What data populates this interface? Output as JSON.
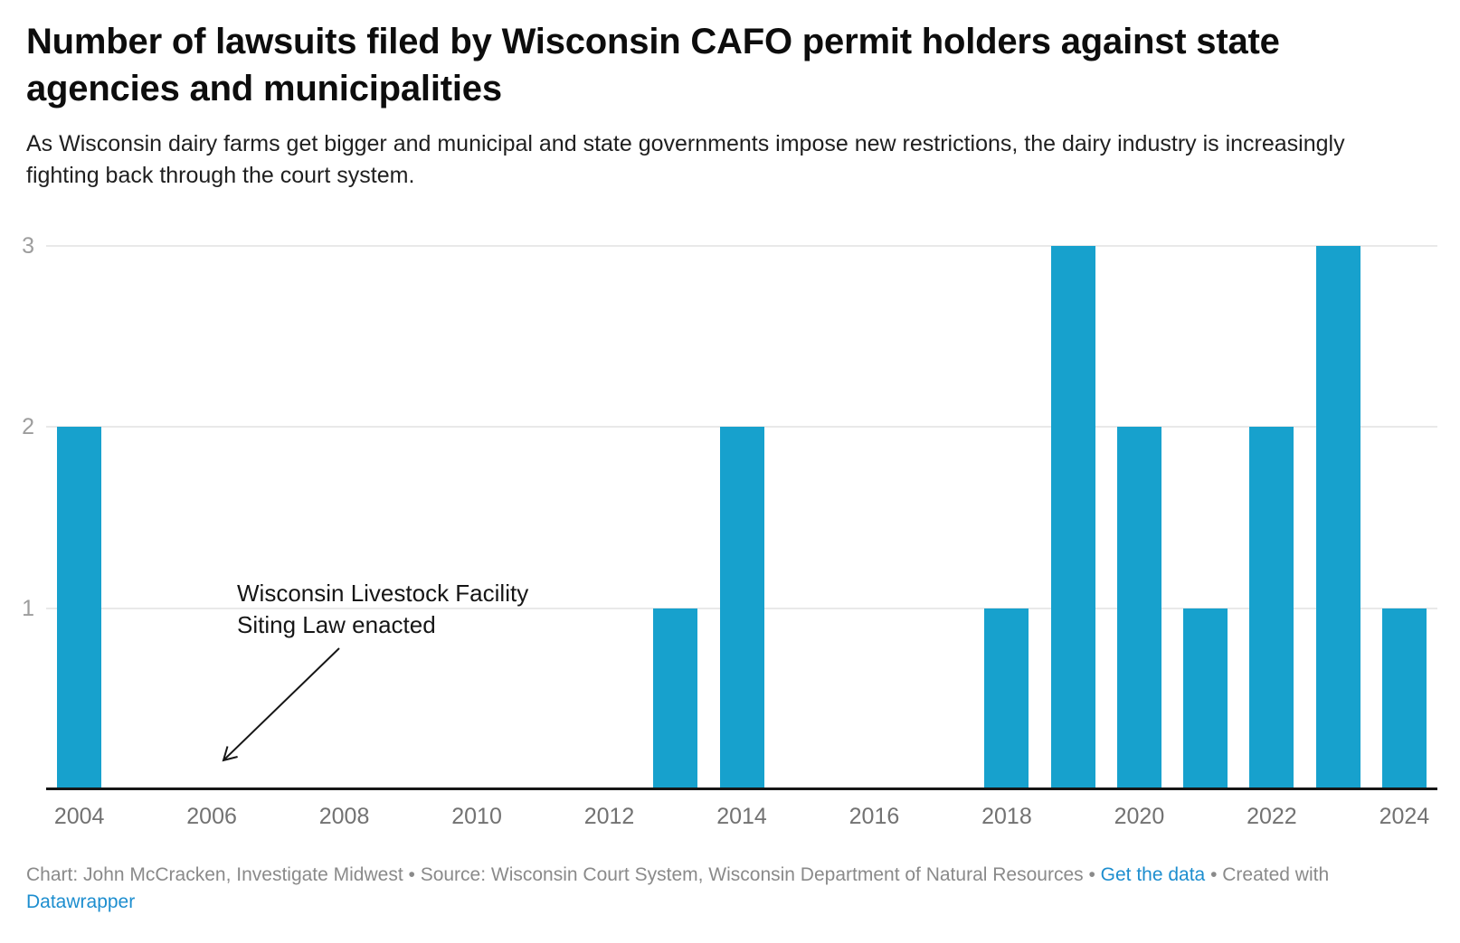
{
  "header": {
    "title": "Number of lawsuits filed by Wisconsin CAFO permit holders against state agencies and municipalities",
    "subtitle": "As Wisconsin dairy farms get bigger and municipal and state governments impose new restrictions, the dairy industry is increasingly fighting back through the court system."
  },
  "chart_data": {
    "type": "bar",
    "title": "Number of lawsuits filed by Wisconsin CAFO permit holders against state agencies and municipalities",
    "categories": [
      2004,
      2005,
      2006,
      2007,
      2008,
      2009,
      2010,
      2011,
      2012,
      2013,
      2014,
      2015,
      2016,
      2017,
      2018,
      2019,
      2020,
      2021,
      2022,
      2023,
      2024
    ],
    "values": [
      2,
      0,
      0,
      0,
      0,
      0,
      0,
      0,
      0,
      1,
      2,
      0,
      0,
      0,
      1,
      3,
      2,
      1,
      2,
      3,
      1
    ],
    "xlabel": "",
    "ylabel": "",
    "ylim": [
      0,
      3
    ],
    "y_ticks": [
      1,
      2,
      3
    ],
    "x_tick_labels": [
      "2004",
      "2006",
      "2008",
      "2010",
      "2012",
      "2014",
      "2016",
      "2018",
      "2020",
      "2022",
      "2024"
    ],
    "grid": true,
    "legend": "none",
    "bar_color": "#17a1cd",
    "gridline_color": "#e9e9e9",
    "axis_line_color": "#161616",
    "annotation": {
      "lines": [
        "Wisconsin Livestock Facility",
        "Siting Law enacted"
      ],
      "arrow_points_to_year": 2006
    }
  },
  "footer": {
    "credit_text": "Chart: John McCracken, Investigate Midwest • Source: Wisconsin Court System, Wisconsin Department of Natural Resources • ",
    "get_data_link": "Get the data",
    "separator_created": " • Created with ",
    "datawrapper_link": "Datawrapper",
    "link_color": "#1d8ecf"
  }
}
